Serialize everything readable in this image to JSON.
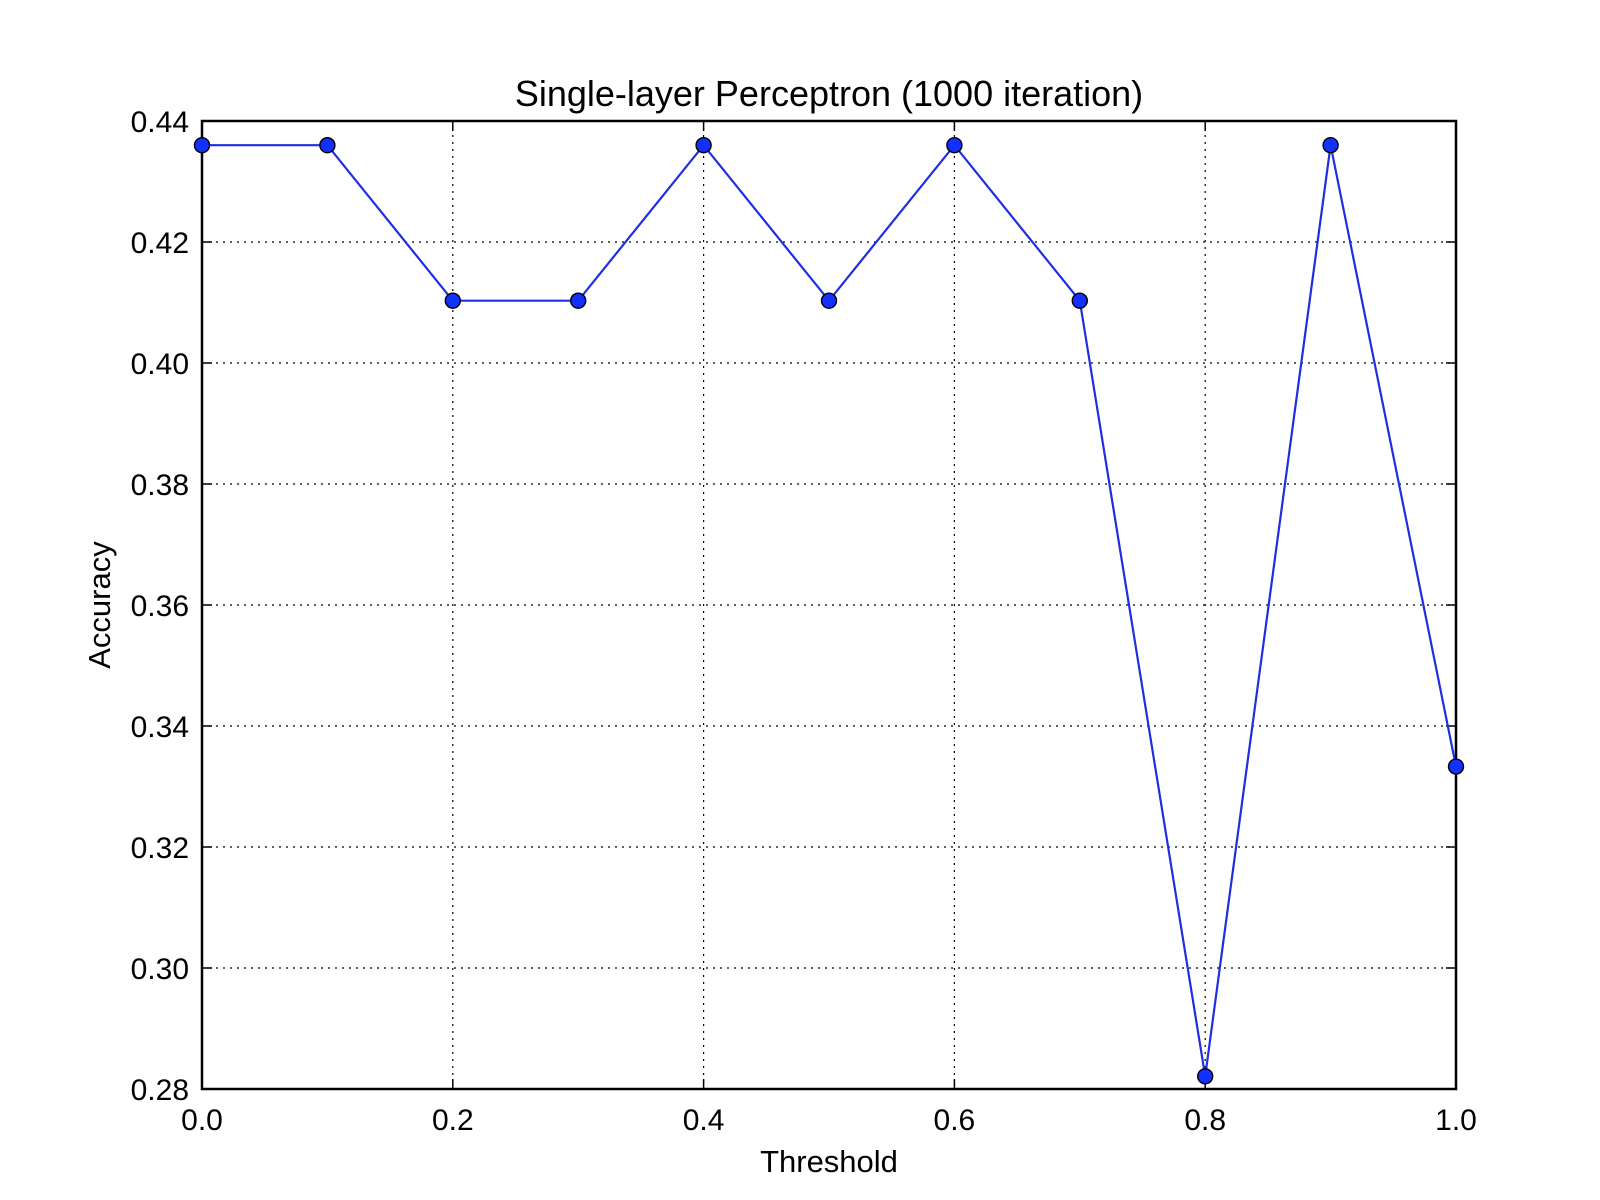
{
  "chart_data": {
    "type": "line",
    "title": "Single-layer Perceptron (1000 iteration)",
    "xlabel": "Threshold",
    "ylabel": "Accuracy",
    "xlim": [
      0.0,
      1.0
    ],
    "ylim": [
      0.28,
      0.44
    ],
    "xticks": [
      "0.0",
      "0.2",
      "0.4",
      "0.6",
      "0.8",
      "1.0"
    ],
    "yticks": [
      "0.28",
      "0.30",
      "0.32",
      "0.34",
      "0.36",
      "0.38",
      "0.40",
      "0.42",
      "0.44"
    ],
    "grid": true,
    "series": [
      {
        "x": [
          0.0,
          0.1,
          0.2,
          0.3,
          0.4,
          0.5,
          0.6,
          0.7,
          0.8,
          0.9,
          1.0
        ],
        "y": [
          0.436,
          0.436,
          0.4103,
          0.4103,
          0.436,
          0.4103,
          0.436,
          0.4103,
          0.2821,
          0.436,
          0.3333
        ],
        "color": "#1f2ee0",
        "marker_color": "#1230ff"
      }
    ]
  }
}
